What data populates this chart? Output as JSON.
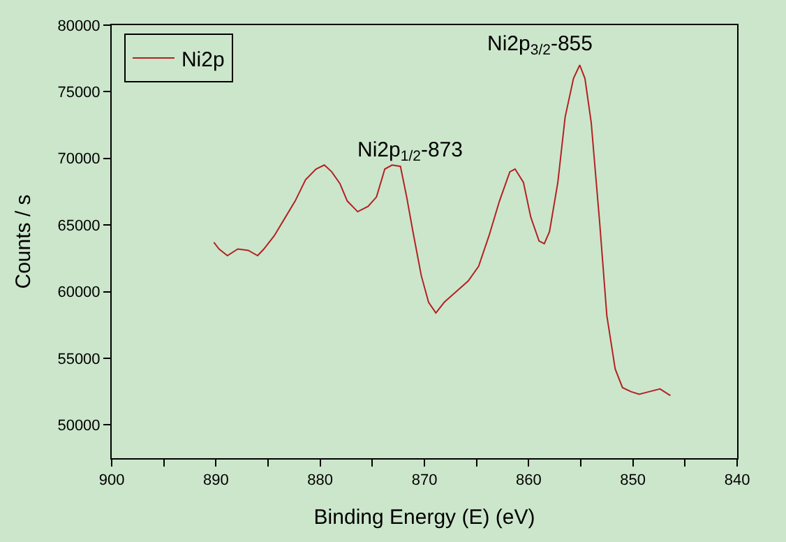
{
  "chart_data": {
    "type": "line",
    "xlabel": "Binding Energy (E) (eV)",
    "ylabel": "Counts / s",
    "xlim": [
      900,
      840
    ],
    "ylim": [
      47500,
      80000
    ],
    "xticks": [
      900,
      {
        "value": 895,
        "label": null
      },
      890,
      {
        "value": 885,
        "label": null
      },
      880,
      {
        "value": 875,
        "label": null
      },
      870,
      {
        "value": 865,
        "label": null
      },
      860,
      {
        "value": 855,
        "label": null
      },
      850,
      {
        "value": 845,
        "label": null
      },
      840
    ],
    "yticks": [
      50000,
      55000,
      60000,
      65000,
      70000,
      75000,
      80000
    ],
    "grid": false,
    "legend": "top left",
    "marker": "none",
    "line_style": "solid",
    "annotations": [
      "Ni2p$_{1/2}$-873",
      "Ni2p$_{3/2}$-855"
    ],
    "series": [
      {
        "name": "Ni2p",
        "color": "#b22222",
        "x": [
          890.2,
          889.7,
          888.9,
          887.9,
          886.9,
          886.0,
          885.4,
          884.4,
          883.4,
          882.4,
          881.4,
          880.4,
          879.6,
          878.9,
          878.1,
          877.4,
          876.4,
          875.4,
          874.6,
          873.8,
          873.1,
          872.3,
          871.7,
          871.1,
          870.3,
          869.6,
          868.9,
          868.1,
          867.1,
          865.8,
          864.8,
          863.8,
          862.8,
          861.8,
          861.3,
          860.5,
          859.8,
          859.0,
          858.5,
          858.0,
          857.2,
          856.5,
          855.7,
          855.1,
          854.6,
          854.0,
          853.2,
          852.5,
          851.7,
          851.0,
          850.2,
          849.4,
          848.4,
          847.4,
          846.4
        ],
        "values": [
          63700,
          63200,
          62700,
          63200,
          63100,
          62700,
          63200,
          64200,
          65500,
          66800,
          68400,
          69200,
          69500,
          69000,
          68100,
          66800,
          66000,
          66400,
          67100,
          69200,
          69500,
          69400,
          67100,
          64500,
          61200,
          59200,
          58400,
          59200,
          59900,
          60800,
          61900,
          64200,
          66800,
          69000,
          69200,
          68200,
          65600,
          63800,
          63600,
          64500,
          68200,
          73100,
          76000,
          77000,
          76000,
          72700,
          65300,
          58200,
          54200,
          52800,
          52500,
          52300,
          52500,
          52700,
          52200
        ]
      }
    ]
  }
}
